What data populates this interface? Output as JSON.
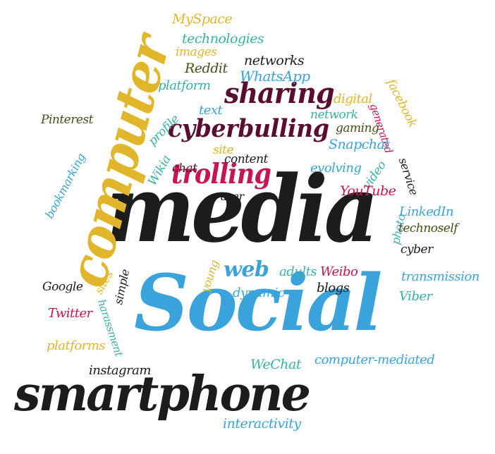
{
  "colors": {
    "black": "#1c1c1c",
    "sky_blue": "#3aa3dc",
    "mustard": "#e1b62a",
    "crimson": "#c8154f",
    "maroon": "#5a0d2c",
    "teal": "#3ab0a6",
    "olive": "#4b4d18"
  },
  "words": {
    "media": "media",
    "social": "Social",
    "smartphone": "smartphone",
    "computer": "computer",
    "cyberbulling": "cyberbulling",
    "sharing": "sharing",
    "trolling": "trolling",
    "web": "web",
    "myspace": "MySpace",
    "technologies": "technologies",
    "images": "images",
    "networks": "networks",
    "reddit": "Reddit",
    "whatsapp": "WhatsApp",
    "platform": "platform",
    "digital": "digital",
    "facebook": "facebook",
    "pinterest": "Pinterest",
    "profile": "profile",
    "text": "text",
    "network": "network",
    "generated": "generated",
    "gaming": "gaming",
    "bookmarking": "bookmarking",
    "wikia": "Wikia",
    "site": "site",
    "snapchat": "Snapchat",
    "chat": "chat",
    "content": "content",
    "evolving": "evolving",
    "video": "video",
    "service": "service",
    "user": "user",
    "youtube": "YouTube",
    "photo": "photo",
    "linkedin": "LinkedIn",
    "technoself": "technoself",
    "cyber": "cyber",
    "young": "young",
    "adults": "adults",
    "weibo": "Weibo",
    "transmission": "transmission",
    "sites": "sites",
    "simple": "simple",
    "google": "Google",
    "dynamic": "dynamic",
    "blogs": "blogs",
    "viber": "Viber",
    "harassment": "harassment",
    "twitter": "Twitter",
    "platforms": "platforms",
    "wechat": "WeChat",
    "computer_mediated": "computer-mediated",
    "instagram": "instagram",
    "interactivity": "interactivity"
  }
}
